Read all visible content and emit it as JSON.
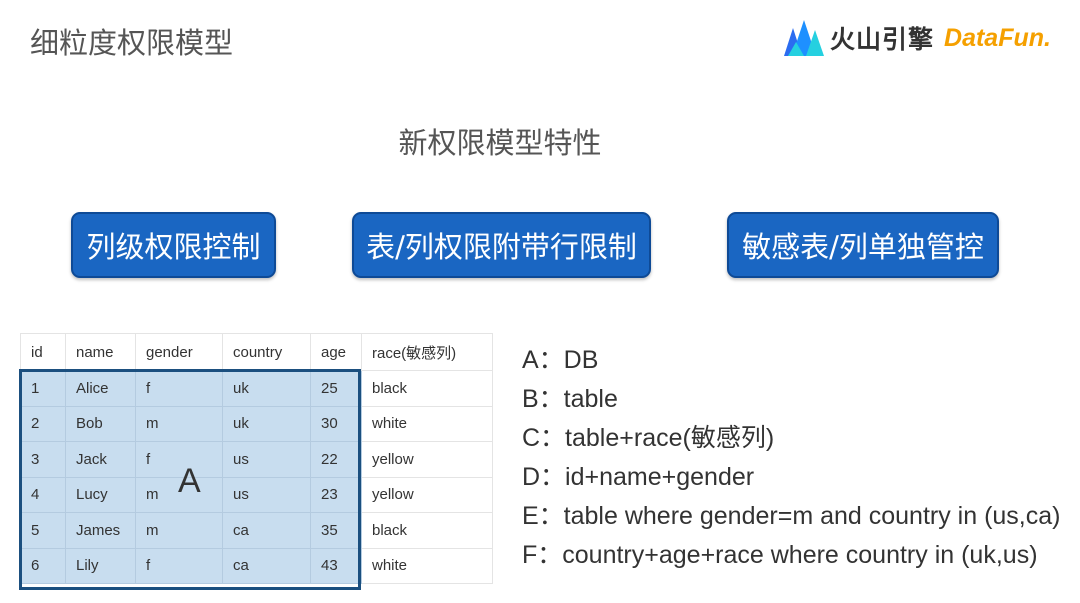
{
  "slide_title": "细粒度权限模型",
  "logo": {
    "brand": "火山引擎",
    "partner": "DataFun."
  },
  "subtitle": "新权限模型特性",
  "features": [
    "列级权限控制",
    "表/列权限附带行限制",
    "敏感表/列单独管控"
  ],
  "table": {
    "headers": [
      "id",
      "name",
      "gender",
      "country",
      "age",
      "race(敏感列)"
    ],
    "rows": [
      [
        "1",
        "Alice",
        "f",
        "uk",
        "25",
        "black"
      ],
      [
        "2",
        "Bob",
        "m",
        "uk",
        "30",
        "white"
      ],
      [
        "3",
        "Jack",
        "f",
        "us",
        "22",
        "yellow"
      ],
      [
        "4",
        "Lucy",
        "m",
        "us",
        "23",
        "yellow"
      ],
      [
        "5",
        "James",
        "m",
        "ca",
        "35",
        "black"
      ],
      [
        "6",
        "Lily",
        "f",
        "ca",
        "43",
        "white"
      ]
    ],
    "region_label": "A"
  },
  "options": [
    "A：DB",
    "B：table",
    "C：table+race(敏感列)",
    "D：id+name+gender",
    "E：table where gender=m and country in (us,ca)",
    "F：country+age+race where country in (uk,us)"
  ],
  "colors": {
    "button": "#1a66c2",
    "highlight": "#c8ddef",
    "highlight_border": "#1b4f7f",
    "partner_logo": "#f5a000"
  }
}
